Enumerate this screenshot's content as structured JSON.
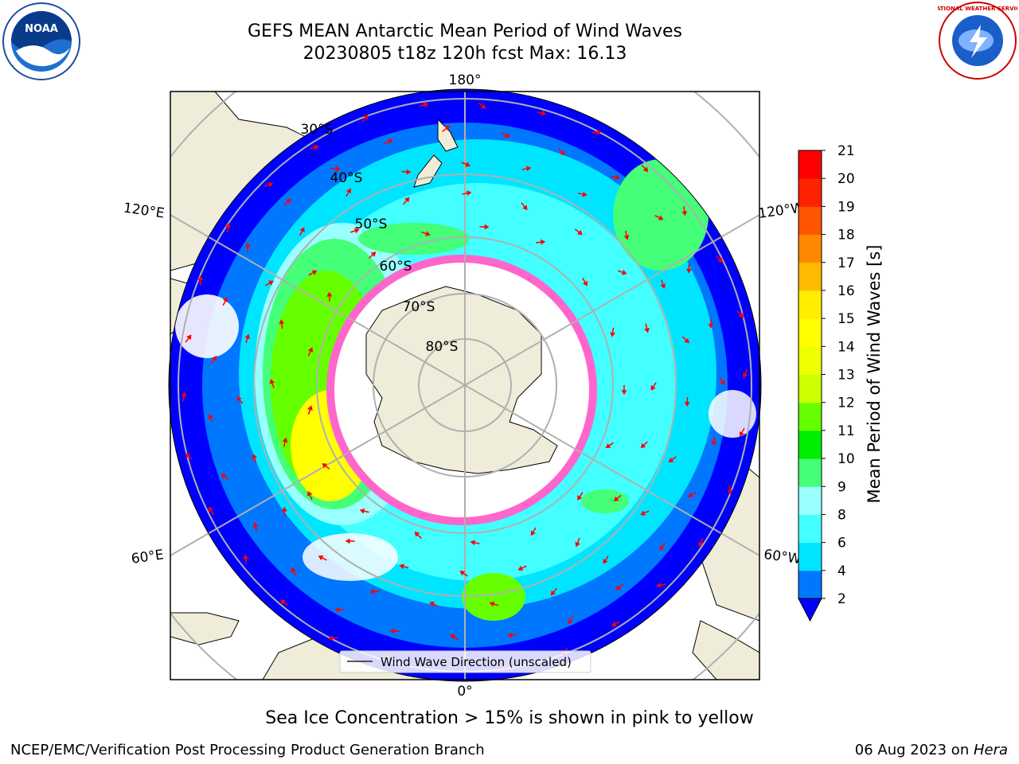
{
  "header": {
    "title_line1": "GEFS MEAN Antarctic Mean Period of Wind Waves",
    "title_line2": "20230805 t18z 120h fcst   Max: 16.13"
  },
  "map": {
    "projection": "south-polar-stereographic",
    "longitude_labels": {
      "lon_180": "180°",
      "lon_0": "0°",
      "lon_120e": "120°E",
      "lon_120w": "120°W",
      "lon_60e": "60°E",
      "lon_60w": "60°W"
    },
    "latitude_labels": [
      "30°S",
      "40°S",
      "50°S",
      "60°S",
      "70°S",
      "80°S"
    ],
    "colors": {
      "land": "#efedd9",
      "sea_ice": "#ff66cc",
      "arrow": "#ff0000",
      "grid": "#b0b0b0"
    },
    "legend_label": "Wind Wave Direction (unscaled)"
  },
  "colorbar": {
    "label": "Mean Period of Wind Waves [s]",
    "ticks": [
      "2",
      "4",
      "6",
      "8",
      "9",
      "10",
      "11",
      "12",
      "13",
      "14",
      "15",
      "16",
      "17",
      "18",
      "19",
      "20",
      "21"
    ],
    "colors": [
      "#0077ff",
      "#00e5ff",
      "#44ffff",
      "#99ffff",
      "#44ff77",
      "#00ee00",
      "#66ff00",
      "#ccff00",
      "#eeff00",
      "#ffff00",
      "#ffee00",
      "#ffbb00",
      "#ff8800",
      "#ff5500",
      "#ff2200",
      "#ff0000"
    ],
    "under_color": "#0000ff"
  },
  "footer": {
    "note": "Sea Ice Concentration > 15% is shown in pink to yellow",
    "credit_left": "NCEP/EMC/Verification Post Processing Product Generation Branch",
    "credit_date": "06 Aug 2023 on ",
    "credit_host": "Hera"
  },
  "logos": {
    "noaa_text": "NOAA",
    "nws_text": "NATIONAL WEATHER SERVICE"
  }
}
